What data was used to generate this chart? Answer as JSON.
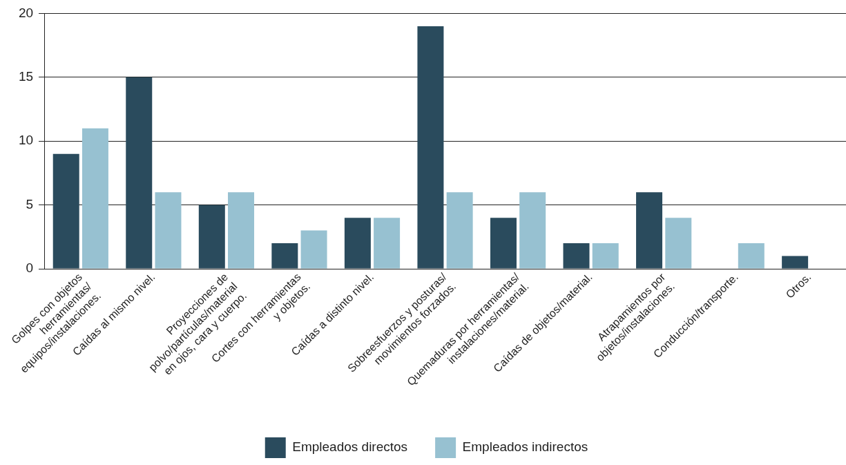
{
  "chart_data": {
    "type": "bar",
    "categories": [
      "Golpes con objetos\nherramientas/\nequipos/instalaciones.",
      "Caídas al mismo nivel.",
      "Proyecciones de\npolvo/partículas/material\nen ojos, cara y cuerpo.",
      "Cortes con herramientas\ny objetos.",
      "Caídas a distinto nivel.",
      "Sobreesfuerzos y posturas/\nmovimientos forzados.",
      "Quemaduras por herramientas/\ninstalaciones/material.",
      "Caídas de objetos/material.",
      "Atrapamientos por\nobjetos/instalaciones.",
      "Conducción/transporte.",
      "Otros."
    ],
    "series": [
      {
        "name": "Empleados directos",
        "color": "#2a4b5d",
        "values": [
          9,
          15,
          5,
          2,
          4,
          19,
          4,
          2,
          6,
          0,
          1
        ]
      },
      {
        "name": "Empleados indirectos",
        "color": "#97c1d1",
        "values": [
          11,
          6,
          6,
          3,
          4,
          6,
          6,
          2,
          4,
          2,
          0
        ]
      }
    ],
    "ylim": [
      0,
      20
    ],
    "yticks": [
      0,
      5,
      10,
      15,
      20
    ],
    "grid": "y",
    "legend": "bottom"
  }
}
